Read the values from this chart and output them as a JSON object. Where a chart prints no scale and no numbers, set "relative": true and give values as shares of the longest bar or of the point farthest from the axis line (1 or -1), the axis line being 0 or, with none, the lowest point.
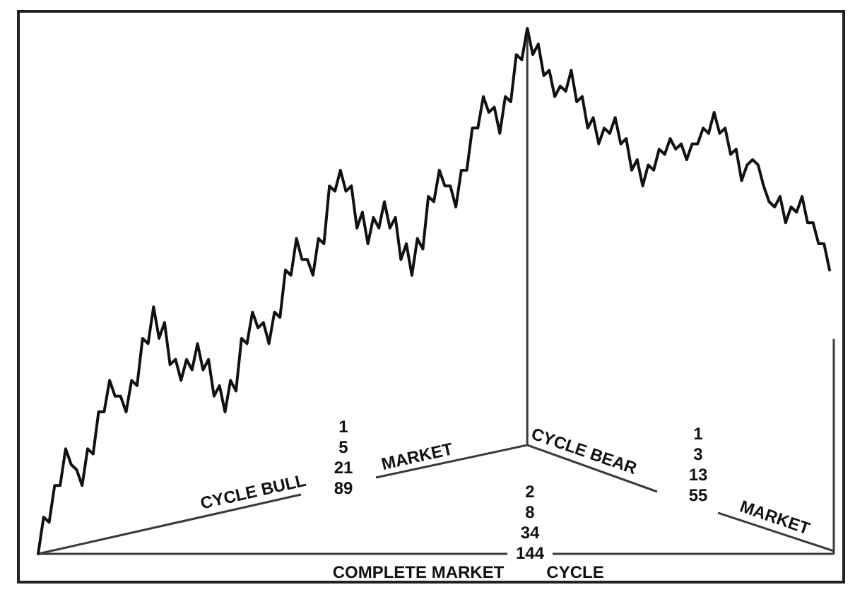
{
  "chart_data": {
    "type": "line",
    "relative": true,
    "color": "#111111",
    "categories": [
      null,
      null,
      null,
      null,
      null,
      null,
      null,
      null,
      null,
      null,
      null,
      null,
      null,
      null,
      null,
      null,
      null,
      null,
      null,
      null,
      null,
      null,
      null,
      null,
      null,
      null,
      null,
      null,
      null,
      null,
      null,
      null,
      null,
      null,
      null,
      null,
      null,
      null,
      null,
      null,
      null,
      null,
      null,
      null,
      null,
      null,
      null,
      null,
      null,
      null,
      null,
      null,
      null,
      null,
      null,
      null,
      null,
      null,
      null,
      null,
      null,
      null,
      null,
      null,
      null,
      null,
      null,
      null,
      null,
      null,
      null,
      null,
      null,
      null,
      null,
      null,
      null,
      null,
      null,
      null,
      null,
      null,
      null,
      null,
      null,
      null,
      null,
      null,
      null,
      null,
      null,
      null,
      null,
      null,
      null,
      null,
      null,
      null,
      null,
      null,
      null,
      null,
      null,
      null,
      null,
      null,
      null,
      null,
      null,
      null,
      null,
      null,
      null,
      null,
      null,
      null,
      null,
      null,
      null,
      null,
      null,
      null,
      null,
      null,
      null,
      null,
      null,
      null,
      null,
      null,
      null,
      null,
      null,
      null,
      null,
      null,
      null,
      null,
      null,
      null,
      null,
      null,
      null,
      null,
      null
    ],
    "values": [
      0,
      0.07,
      0.06,
      0.13,
      0.13,
      0.2,
      0.17,
      0.16,
      0.13,
      0.2,
      0.19,
      0.27,
      0.27,
      0.33,
      0.3,
      0.3,
      0.27,
      0.33,
      0.32,
      0.41,
      0.4,
      0.47,
      0.41,
      0.44,
      0.36,
      0.37,
      0.33,
      0.37,
      0.35,
      0.4,
      0.35,
      0.37,
      0.3,
      0.32,
      0.27,
      0.33,
      0.31,
      0.41,
      0.4,
      0.46,
      0.43,
      0.44,
      0.4,
      0.46,
      0.45,
      0.54,
      0.53,
      0.6,
      0.56,
      0.56,
      0.53,
      0.6,
      0.59,
      0.7,
      0.69,
      0.73,
      0.69,
      0.7,
      0.62,
      0.65,
      0.59,
      0.64,
      0.62,
      0.67,
      0.62,
      0.64,
      0.56,
      0.59,
      0.53,
      0.6,
      0.58,
      0.68,
      0.67,
      0.73,
      0.7,
      0.7,
      0.66,
      0.73,
      0.73,
      0.81,
      0.81,
      0.87,
      0.84,
      0.85,
      0.8,
      0.87,
      0.86,
      0.95,
      0.94,
      1,
      0.95,
      0.97,
      0.91,
      0.92,
      0.87,
      0.89,
      0.88,
      0.92,
      0.86,
      0.87,
      0.81,
      0.83,
      0.78,
      0.81,
      0.8,
      0.83,
      0.78,
      0.79,
      0.73,
      0.75,
      0.7,
      0.74,
      0.73,
      0.77,
      0.76,
      0.79,
      0.77,
      0.78,
      0.75,
      0.78,
      0.78,
      0.81,
      0.8,
      0.84,
      0.8,
      0.81,
      0.76,
      0.77,
      0.71,
      0.74,
      0.75,
      0.74,
      0.7,
      0.67,
      0.66,
      0.68,
      0.63,
      0.66,
      0.65,
      0.68,
      0.63,
      0.63,
      0.59,
      0.59,
      0.54
    ],
    "annotations": [
      "CYCLE BULL",
      "MARKET",
      "CYCLE BEAR",
      "MARKET",
      "COMPLETE MARKET",
      "CYCLE",
      "1\n5\n21\n89",
      "2\n8\n34\n144",
      "1\n3\n13\n55"
    ]
  }
}
